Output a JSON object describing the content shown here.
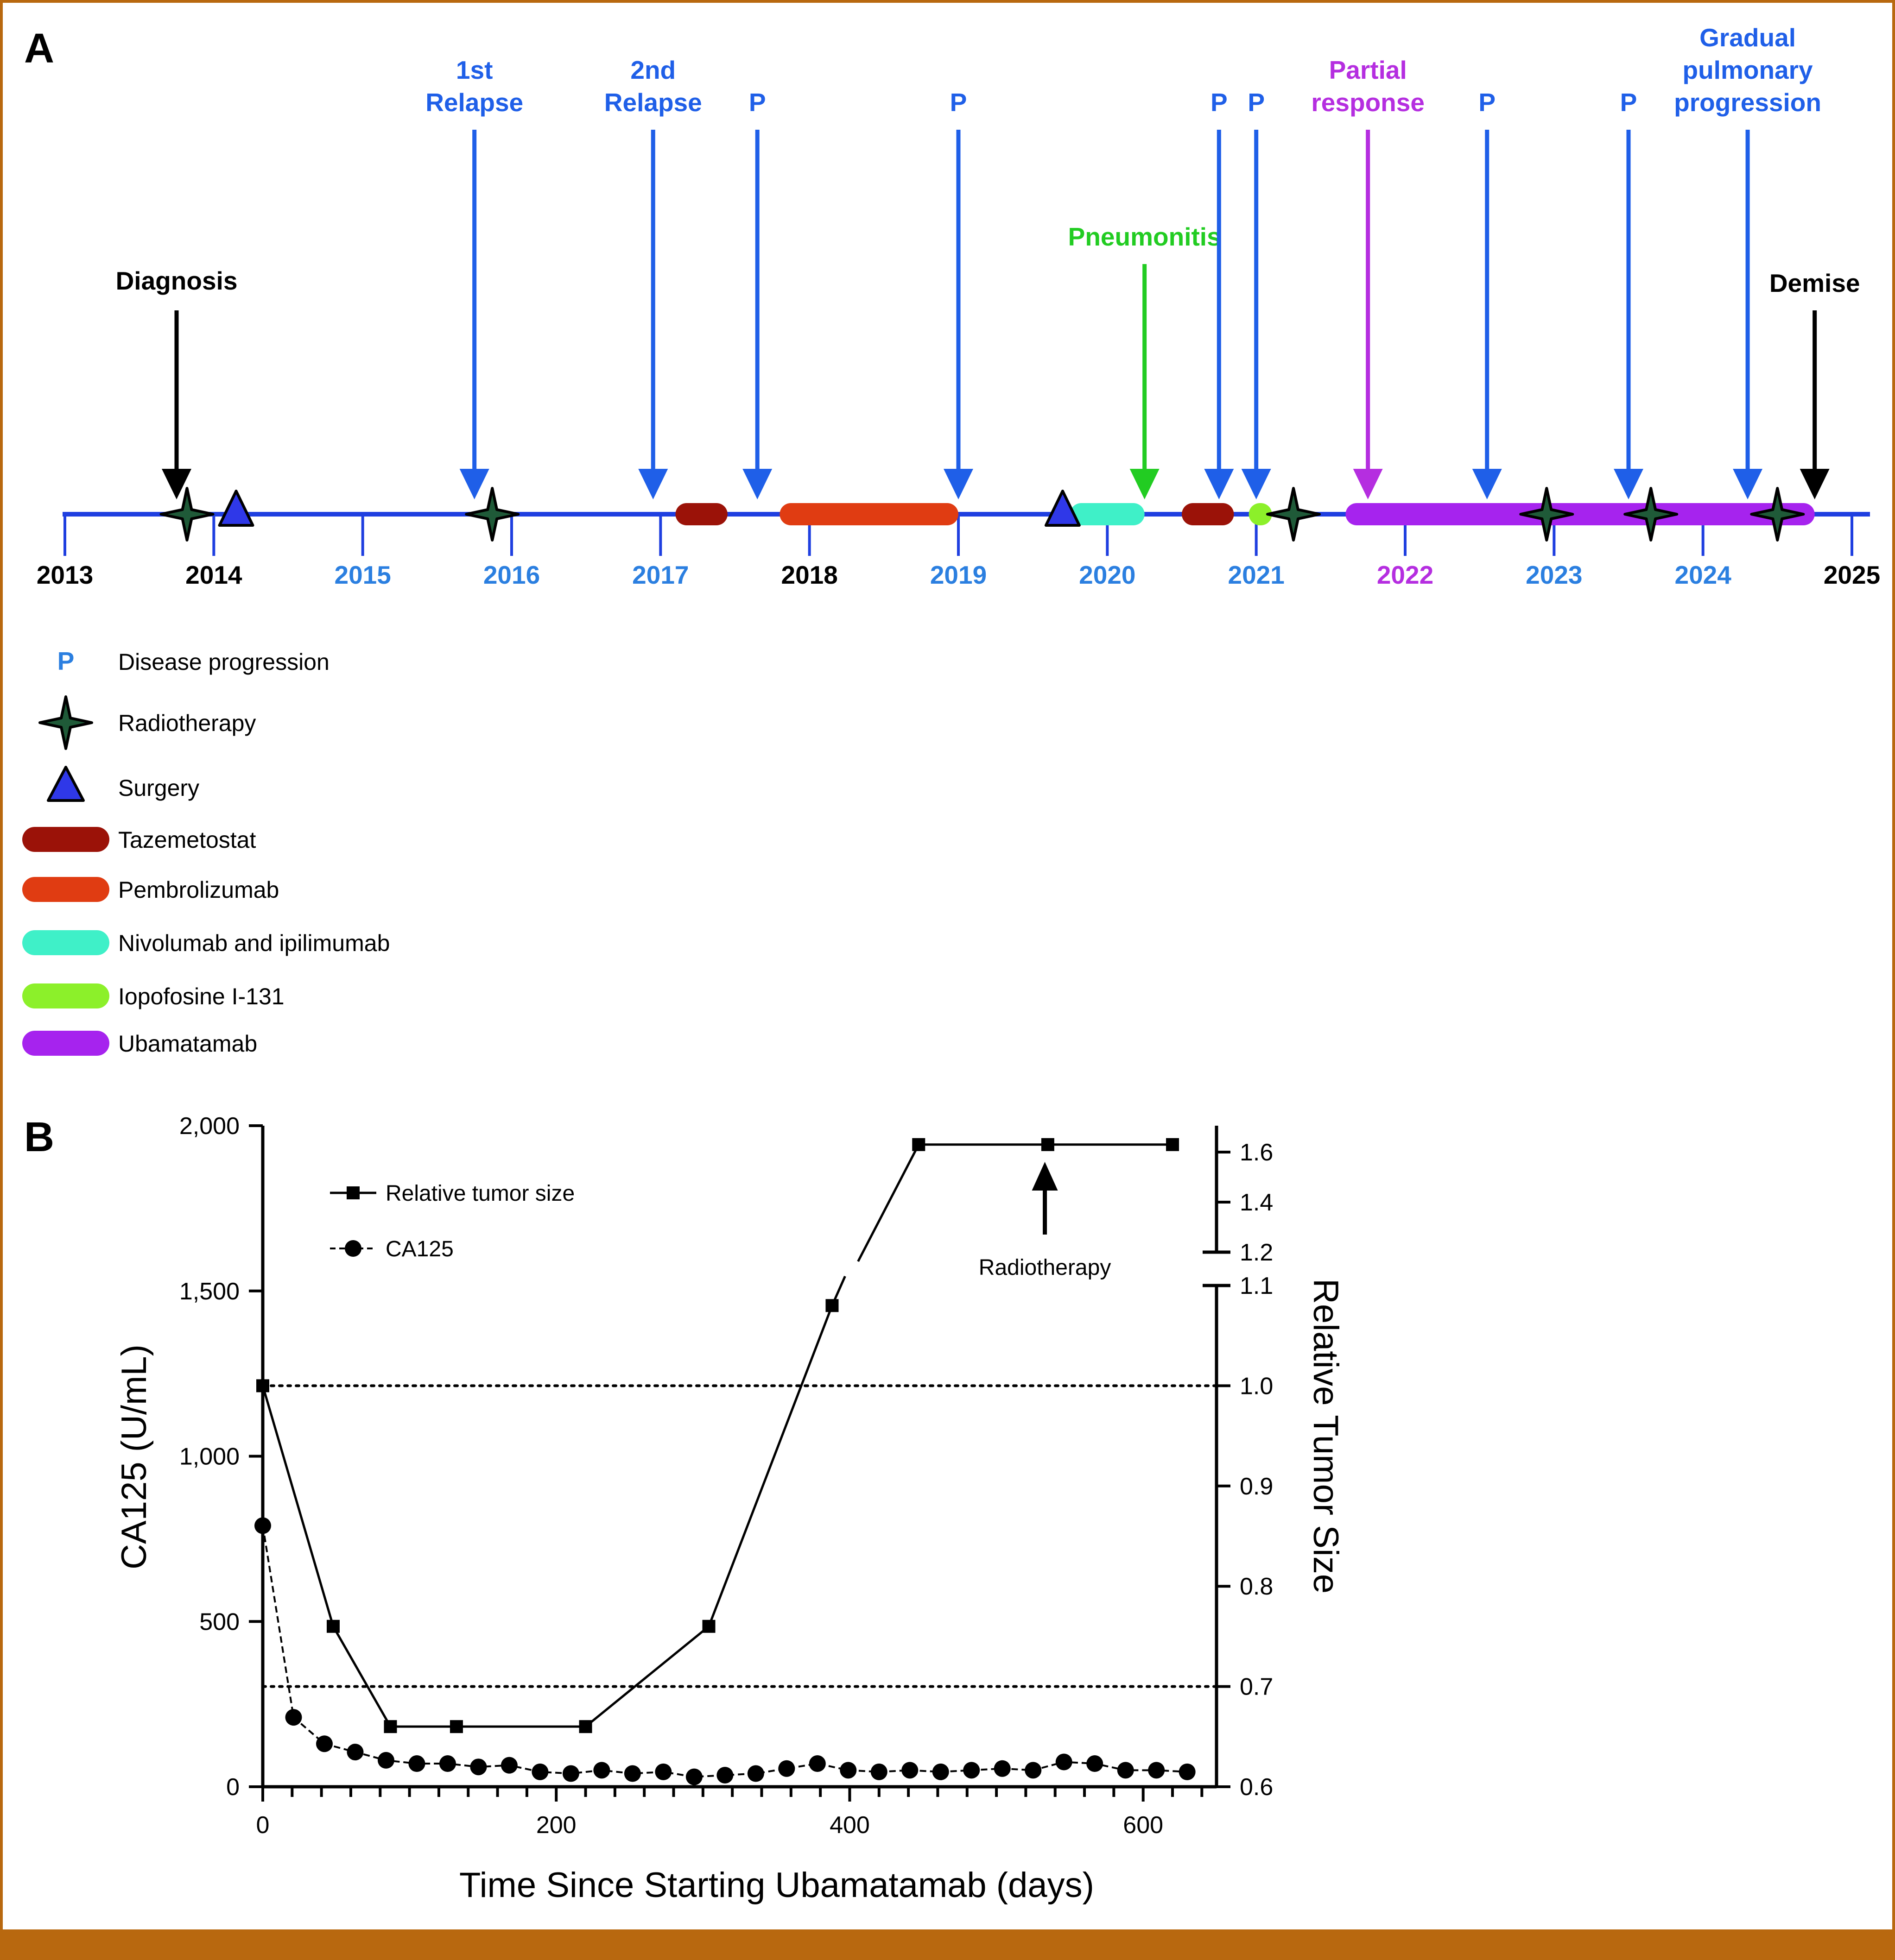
{
  "panelA": {
    "label": "A",
    "years": [
      {
        "label": "2013",
        "color": "#000000"
      },
      {
        "label": "2014",
        "color": "#000000"
      },
      {
        "label": "2015",
        "color": "#2b7fe0"
      },
      {
        "label": "2016",
        "color": "#2b7fe0"
      },
      {
        "label": "2017",
        "color": "#2b7fe0"
      },
      {
        "label": "2018",
        "color": "#000000"
      },
      {
        "label": "2019",
        "color": "#2b7fe0"
      },
      {
        "label": "2020",
        "color": "#2b7fe0"
      },
      {
        "label": "2021",
        "color": "#2b7fe0"
      },
      {
        "label": "2022",
        "color": "#b52ee0"
      },
      {
        "label": "2023",
        "color": "#2b7fe0"
      },
      {
        "label": "2024",
        "color": "#2b7fe0"
      },
      {
        "label": "2025",
        "color": "#000000"
      }
    ],
    "events": [
      {
        "lines": [
          "Diagnosis"
        ],
        "year": 2013.75,
        "color": "#000000",
        "kind": "short"
      },
      {
        "lines": [
          "1st",
          "Relapse"
        ],
        "year": 2015.75,
        "color": "#1f5fe8",
        "kind": "tall"
      },
      {
        "lines": [
          "2nd",
          "Relapse"
        ],
        "year": 2016.95,
        "color": "#1f5fe8",
        "kind": "tall"
      },
      {
        "lines": [
          "P"
        ],
        "year": 2017.65,
        "color": "#1f5fe8",
        "kind": "tall"
      },
      {
        "lines": [
          "P"
        ],
        "year": 2019.0,
        "color": "#1f5fe8",
        "kind": "tall"
      },
      {
        "lines": [
          "Pneumonitis"
        ],
        "year": 2020.25,
        "color": "#22cc22",
        "kind": "mid"
      },
      {
        "lines": [
          "P"
        ],
        "year": 2020.75,
        "color": "#1f5fe8",
        "kind": "tall"
      },
      {
        "lines": [
          "P"
        ],
        "year": 2021.0,
        "color": "#1f5fe8",
        "kind": "tall"
      },
      {
        "lines": [
          "Partial",
          "response"
        ],
        "year": 2021.75,
        "color": "#b52ee0",
        "kind": "tall"
      },
      {
        "lines": [
          "P"
        ],
        "year": 2022.55,
        "color": "#1f5fe8",
        "kind": "tall"
      },
      {
        "lines": [
          "P"
        ],
        "year": 2023.5,
        "color": "#1f5fe8",
        "kind": "tall"
      },
      {
        "lines": [
          "Gradual",
          "pulmonary",
          "progression"
        ],
        "year": 2024.3,
        "color": "#1f5fe8",
        "kind": "tall3"
      },
      {
        "lines": [
          "Demise"
        ],
        "year": 2024.75,
        "color": "#000000",
        "kind": "short"
      }
    ],
    "radiotherapy_years": [
      2013.82,
      2015.87,
      2021.25,
      2022.95,
      2023.65,
      2024.5
    ],
    "surgery_years": [
      2014.15,
      2019.7
    ],
    "treatments": [
      {
        "name": "Tazemetostat",
        "start": 2017.1,
        "end": 2017.45
      },
      {
        "name": "Pembrolizumab",
        "start": 2017.8,
        "end": 2019.0
      },
      {
        "name": "Nivolumab and ipilimumab",
        "start": 2019.75,
        "end": 2020.25
      },
      {
        "name": "Tazemetostat",
        "start": 2020.5,
        "end": 2020.85
      },
      {
        "name": "Iopofosine I-131",
        "start": 2020.95,
        "end": 2021.05
      },
      {
        "name": "Ubamatamab",
        "start": 2021.6,
        "end": 2024.75
      }
    ],
    "legend": [
      {
        "key": "P",
        "type": "text",
        "label": "Disease progression",
        "color": "#2b7fe0"
      },
      {
        "type": "star",
        "label": "Radiotherapy"
      },
      {
        "type": "triangle",
        "label": "Surgery"
      },
      {
        "type": "pill",
        "label": "Tazemetostat",
        "color": "#9b1208"
      },
      {
        "type": "pill",
        "label": "Pembrolizumab",
        "color": "#e03c12"
      },
      {
        "type": "pill",
        "label": "Nivolumab and ipilimumab",
        "color": "#3ff0c8"
      },
      {
        "type": "pill",
        "label": "Iopofosine I-131",
        "color": "#8cf02a"
      },
      {
        "type": "pill",
        "label": "Ubamatamab",
        "color": "#a623ee"
      }
    ],
    "colors": {
      "axis": "#1f3fe0",
      "tazemetostat": "#9b1208",
      "pembrolizumab": "#e03c12",
      "nivolumab": "#3ff0c8",
      "iopofosine": "#8cf02a",
      "ubamatamab": "#a623ee",
      "star": "#1f5a38",
      "triangle": "#2f38e8"
    }
  },
  "panelB": {
    "label": "B",
    "xlabel": "Time Since Starting Ubamatamab (days)",
    "ylabel_left": "CA125 (U/mL)",
    "ylabel_right": "Relative Tumor Size",
    "x_ticks": [
      "0",
      "200",
      "400",
      "600"
    ],
    "left_ticks": [
      "0",
      "500",
      "1,000",
      "1,500",
      "2,000"
    ],
    "right_ticks_lower": [
      "0.6",
      "0.7",
      "0.8",
      "0.9",
      "1.0",
      "1.1"
    ],
    "right_ticks_upper": [
      "1.2",
      "1.4",
      "1.6"
    ],
    "reference_lines": [
      1.0,
      0.7
    ],
    "annotation": "Radiotherapy",
    "annotation_day": 533,
    "legend_tumor": "Relative tumor size",
    "legend_ca125": "CA125"
  },
  "chart_data": [
    {
      "type": "timeline",
      "title": "A",
      "xlabel": "",
      "x_range": [
        2013,
        2025
      ],
      "events": [
        {
          "label": "Diagnosis",
          "year": 2013.75
        },
        {
          "label": "1st Relapse",
          "year": 2015.75
        },
        {
          "label": "2nd Relapse",
          "year": 2016.95
        },
        {
          "label": "P",
          "year": 2017.65
        },
        {
          "label": "P",
          "year": 2019.0
        },
        {
          "label": "Pneumonitis",
          "year": 2020.25
        },
        {
          "label": "P",
          "year": 2020.75
        },
        {
          "label": "P",
          "year": 2021.0
        },
        {
          "label": "Partial response",
          "year": 2021.75
        },
        {
          "label": "P",
          "year": 2022.55
        },
        {
          "label": "P",
          "year": 2023.5
        },
        {
          "label": "Gradual pulmonary progression",
          "year": 2024.3
        },
        {
          "label": "Demise",
          "year": 2024.75
        }
      ]
    },
    {
      "type": "line",
      "title": "B",
      "xlabel": "Time Since Starting Ubamatamab (days)",
      "ylabel": "CA125 (U/mL)",
      "ylabel_right": "Relative Tumor Size",
      "xlim": [
        0,
        650
      ],
      "ylim": [
        0,
        2000
      ],
      "ylim_right": [
        0.6,
        1.65
      ],
      "series": [
        {
          "name": "Relative tumor size",
          "axis": "right",
          "x": [
            0,
            48,
            87,
            132,
            220,
            304,
            388,
            447,
            535,
            620
          ],
          "values": [
            1.0,
            0.76,
            0.66,
            0.66,
            0.66,
            0.76,
            1.08,
            1.63,
            1.63,
            1.63
          ]
        },
        {
          "name": "CA125",
          "axis": "left",
          "x": [
            0,
            21,
            42,
            63,
            84,
            105,
            126,
            147,
            168,
            189,
            210,
            231,
            252,
            273,
            294,
            315,
            336,
            357,
            378,
            399,
            420,
            441,
            462,
            483,
            504,
            525,
            546,
            567,
            588,
            609,
            630
          ],
          "values": [
            790,
            210,
            130,
            105,
            80,
            70,
            70,
            60,
            65,
            45,
            40,
            50,
            40,
            45,
            30,
            35,
            40,
            55,
            70,
            50,
            45,
            50,
            45,
            50,
            55,
            50,
            75,
            70,
            50,
            50,
            45
          ]
        }
      ]
    }
  ]
}
